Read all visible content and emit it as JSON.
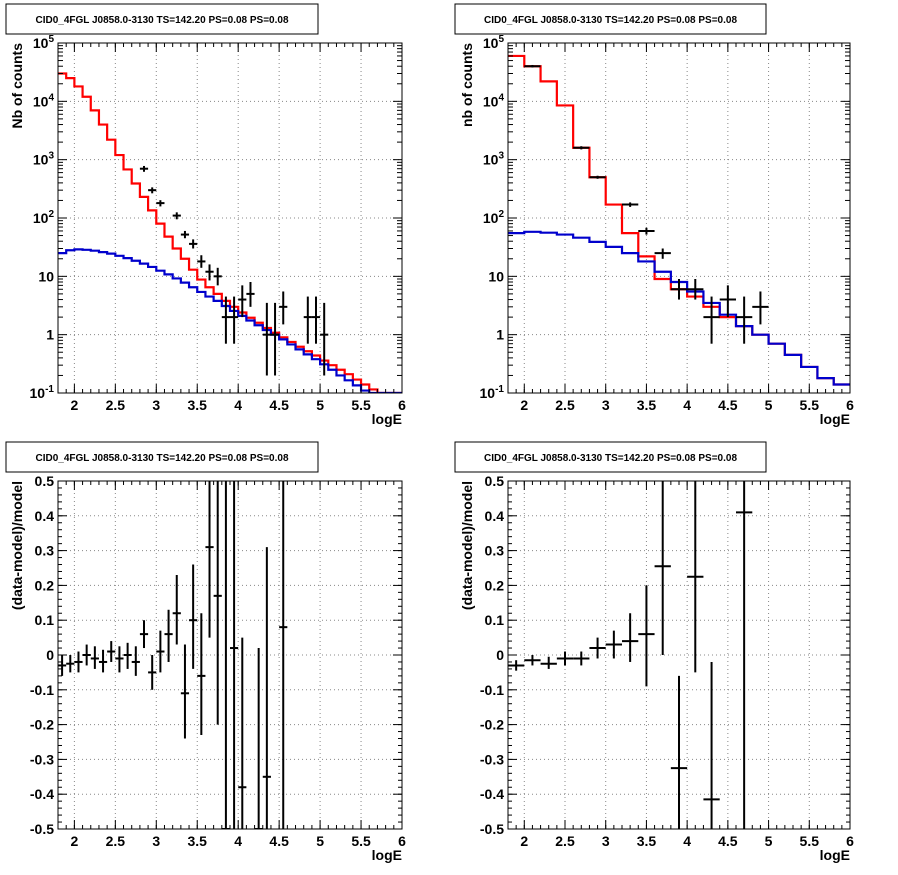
{
  "colors": {
    "model_total": "#ff0000",
    "model_source": "#0000cc",
    "data": "#000000",
    "grid": "#888888"
  },
  "chart_data": [
    {
      "type": "line",
      "title": "CID0_4FGL J0858.0-3130 TS=142.20 PS=0.08 PS=0.08",
      "xlabel": "logE",
      "ylabel": "Nb of counts",
      "yscale": "log",
      "xlim": [
        1.8,
        6.0
      ],
      "ylim": [
        0.1,
        100000
      ],
      "grid": true,
      "xticks": [
        "2",
        "2.5",
        "3",
        "3.5",
        "4",
        "4.5",
        "5",
        "5.5",
        "6"
      ],
      "yticks": [
        "10^{-1}",
        "1",
        "10",
        "10^{2}",
        "10^{3}",
        "10^{4}",
        "10^{5}"
      ],
      "bin_width": 0.1,
      "series": [
        {
          "style": "step",
          "color": "#ff0000",
          "x": [
            1.85,
            1.95,
            2.05,
            2.15,
            2.25,
            2.35,
            2.45,
            2.55,
            2.65,
            2.75,
            2.85,
            2.95,
            3.05,
            3.15,
            3.25,
            3.35,
            3.45,
            3.55,
            3.65,
            3.75,
            3.85,
            3.95,
            4.05,
            4.15,
            4.25,
            4.35,
            4.45,
            4.55,
            4.65,
            4.75,
            4.85,
            4.95,
            5.05,
            5.15,
            5.25,
            5.35,
            5.45,
            5.55,
            5.65,
            5.75,
            5.85,
            5.95
          ],
          "values": [
            30000,
            25000,
            18000,
            12000,
            7000,
            4000,
            2200,
            1200,
            680,
            390,
            230,
            135,
            80,
            48,
            30,
            20,
            13,
            8.8,
            6.5,
            5,
            3.8,
            3,
            2.4,
            1.95,
            1.6,
            1.3,
            1.08,
            0.9,
            0.75,
            0.62,
            0.52,
            0.44,
            0.36,
            0.3,
            0.25,
            0.21,
            0.17,
            0.14,
            0.115,
            0.1,
            0.1,
            0.1
          ]
        },
        {
          "style": "step",
          "color": "#0000cc",
          "x": [
            1.85,
            1.95,
            2.05,
            2.15,
            2.25,
            2.35,
            2.45,
            2.55,
            2.65,
            2.75,
            2.85,
            2.95,
            3.05,
            3.15,
            3.25,
            3.35,
            3.45,
            3.55,
            3.65,
            3.75,
            3.85,
            3.95,
            4.05,
            4.15,
            4.25,
            4.35,
            4.45,
            4.55,
            4.65,
            4.75,
            4.85,
            4.95,
            5.05,
            5.15,
            5.25,
            5.35,
            5.45,
            5.55,
            5.65,
            5.75,
            5.85,
            5.95
          ],
          "values": [
            25,
            28,
            29,
            28.5,
            27.5,
            26,
            24.5,
            22.5,
            20.5,
            18.5,
            16.5,
            14.5,
            12.5,
            10.8,
            9.2,
            7.8,
            6.5,
            5.4,
            4.5,
            3.8,
            3.1,
            2.55,
            2.1,
            1.75,
            1.45,
            1.2,
            1.0,
            0.83,
            0.68,
            0.56,
            0.46,
            0.38,
            0.31,
            0.25,
            0.2,
            0.165,
            0.135,
            0.11,
            0.1,
            0.1,
            0.1,
            0.1
          ]
        },
        {
          "style": "errorbar",
          "color": "#000000",
          "points": [
            [
              2.85,
              700,
              620,
              780
            ],
            [
              2.95,
              300,
              265,
              335
            ],
            [
              3.05,
              180,
              158,
              202
            ],
            [
              3.25,
              110,
              95,
              125
            ],
            [
              3.35,
              52,
              45,
              60
            ],
            [
              3.45,
              36,
              30,
              43
            ],
            [
              3.55,
              18,
              14,
              23
            ],
            [
              3.65,
              12,
              8.5,
              16
            ],
            [
              3.75,
              10,
              7,
              14
            ],
            [
              3.85,
              2,
              0.7,
              4.5
            ],
            [
              3.95,
              2,
              0.7,
              4.5
            ],
            [
              4.05,
              4,
              2,
              7
            ],
            [
              4.15,
              5,
              3,
              8
            ],
            [
              4.35,
              1,
              0.2,
              3.5
            ],
            [
              4.45,
              1,
              0.2,
              3.5
            ],
            [
              4.55,
              3,
              1.5,
              5.5
            ],
            [
              4.85,
              2,
              0.7,
              4.5
            ],
            [
              4.95,
              2,
              0.7,
              4.5
            ],
            [
              5.05,
              1,
              0.2,
              3.5
            ]
          ]
        }
      ]
    },
    {
      "type": "line",
      "title": "CID0_4FGL J0858.0-3130 TS=142.20 PS=0.08 PS=0.08",
      "xlabel": "logE",
      "ylabel": "nb of counts",
      "yscale": "log",
      "xlim": [
        1.8,
        6.0
      ],
      "ylim": [
        0.1,
        100000
      ],
      "grid": true,
      "xticks": [
        "2",
        "2.5",
        "3",
        "3.5",
        "4",
        "4.5",
        "5",
        "5.5",
        "6"
      ],
      "yticks": [
        "10^{-1}",
        "1",
        "10",
        "10^{2}",
        "10^{3}",
        "10^{4}",
        "10^{5}"
      ],
      "bin_width": 0.2,
      "series": [
        {
          "style": "step",
          "color": "#ff0000",
          "x": [
            1.9,
            2.1,
            2.3,
            2.5,
            2.7,
            2.9,
            3.1,
            3.3,
            3.5,
            3.7,
            3.9,
            4.1,
            4.3,
            4.5,
            4.7,
            4.9,
            5.1,
            5.3,
            5.5,
            5.7,
            5.9
          ],
          "values": [
            60000,
            40000,
            22000,
            8500,
            1600,
            500,
            170,
            55,
            22,
            9,
            6,
            4.5,
            3,
            2,
            1.4,
            1,
            0.7,
            0.45,
            0.28,
            0.18,
            0.14
          ]
        },
        {
          "style": "step",
          "color": "#0000cc",
          "x": [
            1.9,
            2.1,
            2.3,
            2.5,
            2.7,
            2.9,
            3.1,
            3.3,
            3.5,
            3.7,
            3.9,
            4.1,
            4.3,
            4.5,
            4.7,
            4.9,
            5.1,
            5.3,
            5.5,
            5.7,
            5.9
          ],
          "values": [
            55,
            58,
            56,
            52,
            46,
            39,
            32,
            25,
            18,
            12,
            8,
            5.5,
            3.5,
            2.2,
            1.4,
            1,
            0.7,
            0.45,
            0.28,
            0.18,
            0.14
          ]
        },
        {
          "style": "errorbar",
          "color": "#000000",
          "points": [
            [
              2.1,
              40000,
              38000,
              42000
            ],
            [
              2.7,
              1600,
              1500,
              1700
            ],
            [
              2.9,
              500,
              470,
              530
            ],
            [
              3.3,
              170,
              155,
              185
            ],
            [
              3.5,
              60,
              52,
              68
            ],
            [
              3.7,
              25,
              20,
              30
            ],
            [
              3.9,
              6,
              4,
              9
            ],
            [
              4.1,
              6,
              4,
              9
            ],
            [
              4.3,
              2,
              0.7,
              4.5
            ],
            [
              4.5,
              4,
              2,
              7
            ],
            [
              4.7,
              2,
              0.7,
              4.5
            ],
            [
              4.9,
              3,
              1.5,
              5.5
            ]
          ]
        }
      ]
    },
    {
      "type": "scatter",
      "title": "CID0_4FGL J0858.0-3130 TS=142.20 PS=0.08 PS=0.08",
      "xlabel": "logE",
      "ylabel": "(data-model)/model",
      "xlim": [
        1.8,
        6.0
      ],
      "ylim": [
        -0.5,
        0.5
      ],
      "grid": true,
      "xticks": [
        "2",
        "2.5",
        "3",
        "3.5",
        "4",
        "4.5",
        "5",
        "5.5",
        "6"
      ],
      "yticks": [
        "-0.5",
        "-0.4",
        "-0.3",
        "-0.2",
        "-0.1",
        "0",
        "0.1",
        "0.2",
        "0.3",
        "0.4",
        "0.5"
      ],
      "bin_width": 0.1,
      "series": [
        {
          "style": "errorbar",
          "color": "#000000",
          "points": [
            [
              1.85,
              -0.03,
              -0.06,
              0.0
            ],
            [
              1.95,
              -0.025,
              -0.05,
              0.0
            ],
            [
              2.05,
              -0.02,
              -0.05,
              0.01
            ],
            [
              2.15,
              0.0,
              -0.03,
              0.03
            ],
            [
              2.25,
              -0.01,
              -0.04,
              0.025
            ],
            [
              2.35,
              -0.02,
              -0.05,
              0.015
            ],
            [
              2.45,
              0.01,
              -0.02,
              0.04
            ],
            [
              2.55,
              -0.01,
              -0.05,
              0.025
            ],
            [
              2.65,
              0.0,
              -0.04,
              0.035
            ],
            [
              2.75,
              -0.02,
              -0.06,
              0.025
            ],
            [
              2.85,
              0.06,
              0.02,
              0.1
            ],
            [
              2.95,
              -0.05,
              -0.1,
              0.0
            ],
            [
              3.05,
              0.01,
              -0.05,
              0.07
            ],
            [
              3.15,
              0.06,
              -0.02,
              0.13
            ],
            [
              3.25,
              0.12,
              0.03,
              0.23
            ],
            [
              3.35,
              -0.11,
              -0.24,
              0.03
            ],
            [
              3.45,
              0.1,
              -0.04,
              0.26
            ],
            [
              3.55,
              -0.06,
              -0.23,
              0.12
            ],
            [
              3.65,
              0.31,
              0.05,
              0.5
            ],
            [
              3.75,
              0.17,
              -0.2,
              0.5
            ],
            [
              3.85,
              -0.5,
              -0.5,
              0.5
            ],
            [
              3.95,
              0.02,
              -0.5,
              0.5
            ],
            [
              4.05,
              -0.38,
              -0.5,
              0.05
            ],
            [
              4.25,
              -0.5,
              -0.5,
              0.02
            ],
            [
              4.35,
              -0.35,
              -0.5,
              0.31
            ],
            [
              4.55,
              0.08,
              -0.5,
              0.5
            ]
          ]
        }
      ]
    },
    {
      "type": "scatter",
      "title": "CID0_4FGL J0858.0-3130 TS=142.20 PS=0.08 PS=0.08",
      "xlabel": "logE",
      "ylabel": "(data-model)/model",
      "xlim": [
        1.8,
        6.0
      ],
      "ylim": [
        -0.5,
        0.5
      ],
      "grid": true,
      "xticks": [
        "2",
        "2.5",
        "3",
        "3.5",
        "4",
        "4.5",
        "5",
        "5.5",
        "6"
      ],
      "yticks": [
        "-0.5",
        "-0.4",
        "-0.3",
        "-0.2",
        "-0.1",
        "0",
        "0.1",
        "0.2",
        "0.3",
        "0.4",
        "0.5"
      ],
      "bin_width": 0.2,
      "series": [
        {
          "style": "errorbar",
          "color": "#000000",
          "points": [
            [
              1.9,
              -0.03,
              -0.045,
              -0.015
            ],
            [
              2.1,
              -0.015,
              -0.03,
              0.0
            ],
            [
              2.3,
              -0.025,
              -0.04,
              -0.005
            ],
            [
              2.5,
              -0.01,
              -0.03,
              0.01
            ],
            [
              2.7,
              -0.01,
              -0.03,
              0.01
            ],
            [
              2.9,
              0.02,
              -0.01,
              0.05
            ],
            [
              3.1,
              0.03,
              -0.01,
              0.07
            ],
            [
              3.3,
              0.04,
              -0.02,
              0.12
            ],
            [
              3.5,
              0.06,
              -0.09,
              0.2
            ],
            [
              3.7,
              0.255,
              0.0,
              0.5
            ],
            [
              3.9,
              -0.325,
              -0.5,
              -0.06
            ],
            [
              4.1,
              0.225,
              -0.05,
              0.5
            ],
            [
              4.3,
              -0.415,
              -0.5,
              -0.02
            ],
            [
              4.7,
              0.41,
              -0.5,
              0.5
            ]
          ]
        }
      ]
    }
  ]
}
